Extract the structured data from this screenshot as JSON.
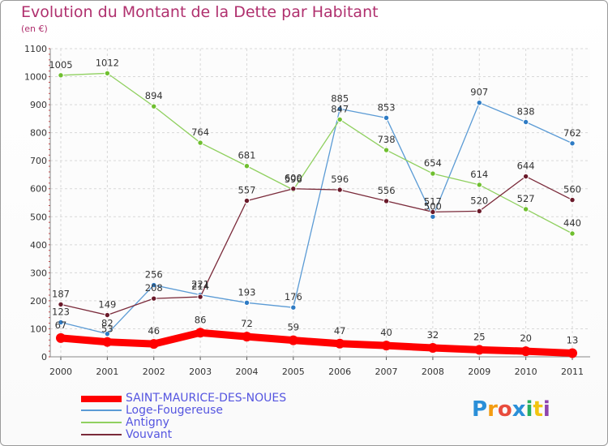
{
  "title": "Evolution du Montant de la Dette par Habitant",
  "unit": "(en €)",
  "logo": {
    "text": "Proxiti",
    "colors": [
      "#2a8fd8",
      "#f39c12",
      "#e84c3d",
      "#2a8fd8",
      "#27ae60",
      "#f1c40f",
      "#8e44ad"
    ]
  },
  "chart_data": {
    "type": "line",
    "x": [
      "2000",
      "2001",
      "2002",
      "2003",
      "2004",
      "2005",
      "2006",
      "2007",
      "2008",
      "2009",
      "2010",
      "2011"
    ],
    "ylim": [
      0,
      1100
    ],
    "yticks": [
      0,
      100,
      200,
      300,
      400,
      500,
      600,
      700,
      800,
      900,
      1000,
      1100
    ],
    "grid": true,
    "legend_position": "bottom-left",
    "series": [
      {
        "name": "SAINT-MAURICE-DES-NOUES",
        "color": "#ff0000",
        "thick": true,
        "values": [
          67,
          53,
          46,
          86,
          72,
          59,
          47,
          40,
          32,
          25,
          20,
          13
        ],
        "labels": [
          "67",
          "53",
          "46",
          "86",
          "72",
          "59",
          "47",
          "40",
          "32",
          "25",
          "20",
          "13"
        ]
      },
      {
        "name": "Loge-Fougereuse",
        "color": "#5b9bd5",
        "marker": "#2e7bc4",
        "values": [
          123,
          82,
          256,
          221,
          193,
          176,
          885,
          853,
          500,
          907,
          838,
          762
        ],
        "labels": [
          "123",
          "82",
          "256",
          "221",
          "193",
          "176",
          "885",
          "853",
          "500",
          "907",
          "838",
          "762"
        ]
      },
      {
        "name": "Antigny",
        "color": "#90d060",
        "marker": "#6fbf2f",
        "values": [
          1005,
          1012,
          894,
          764,
          681,
          596,
          847,
          738,
          654,
          614,
          527,
          440
        ],
        "labels": [
          "1005",
          "1012",
          "894",
          "764",
          "681",
          "596",
          "847",
          "738",
          "654",
          "614",
          "527",
          "440"
        ]
      },
      {
        "name": "Vouvant",
        "color": "#7a2a3a",
        "marker": "#6a1a2a",
        "values": [
          187,
          149,
          208,
          214,
          557,
          600,
          596,
          556,
          517,
          520,
          644,
          560
        ],
        "labels": [
          "187",
          "149",
          "208",
          "214",
          "557",
          "600",
          "596",
          "556",
          "517",
          "520",
          "644",
          "560"
        ]
      }
    ]
  }
}
